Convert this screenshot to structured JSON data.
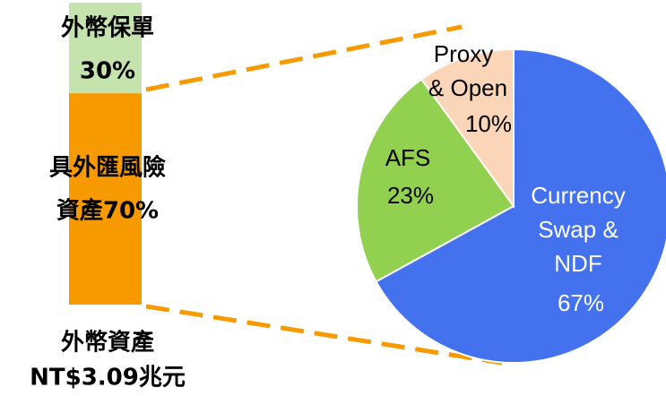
{
  "chart_data": [
    {
      "type": "bar",
      "categories": [
        "外幣資產"
      ],
      "annotation": "NT$3.09兆元",
      "series": [
        {
          "name": "具外匯風險",
          "color": "#f79a00",
          "values": [
            70
          ],
          "value_labels": [
            "資產70%"
          ]
        },
        {
          "name": "外幣保單",
          "color": "#c5e4ad",
          "values": [
            30
          ],
          "value_labels": [
            "30%"
          ]
        }
      ],
      "ylim": [
        0,
        100
      ],
      "stacked": true
    },
    {
      "type": "pie",
      "labels": [
        [
          "Currency",
          "Swap &",
          "NDF"
        ],
        [
          "AFS"
        ],
        [
          "Proxy",
          "& Open"
        ]
      ],
      "values": [
        67,
        23,
        10
      ],
      "value_labels": [
        "67%",
        "23%",
        "10%"
      ],
      "colors": [
        "#4472ee",
        "#92d050",
        "#fbd5b8"
      ]
    }
  ]
}
